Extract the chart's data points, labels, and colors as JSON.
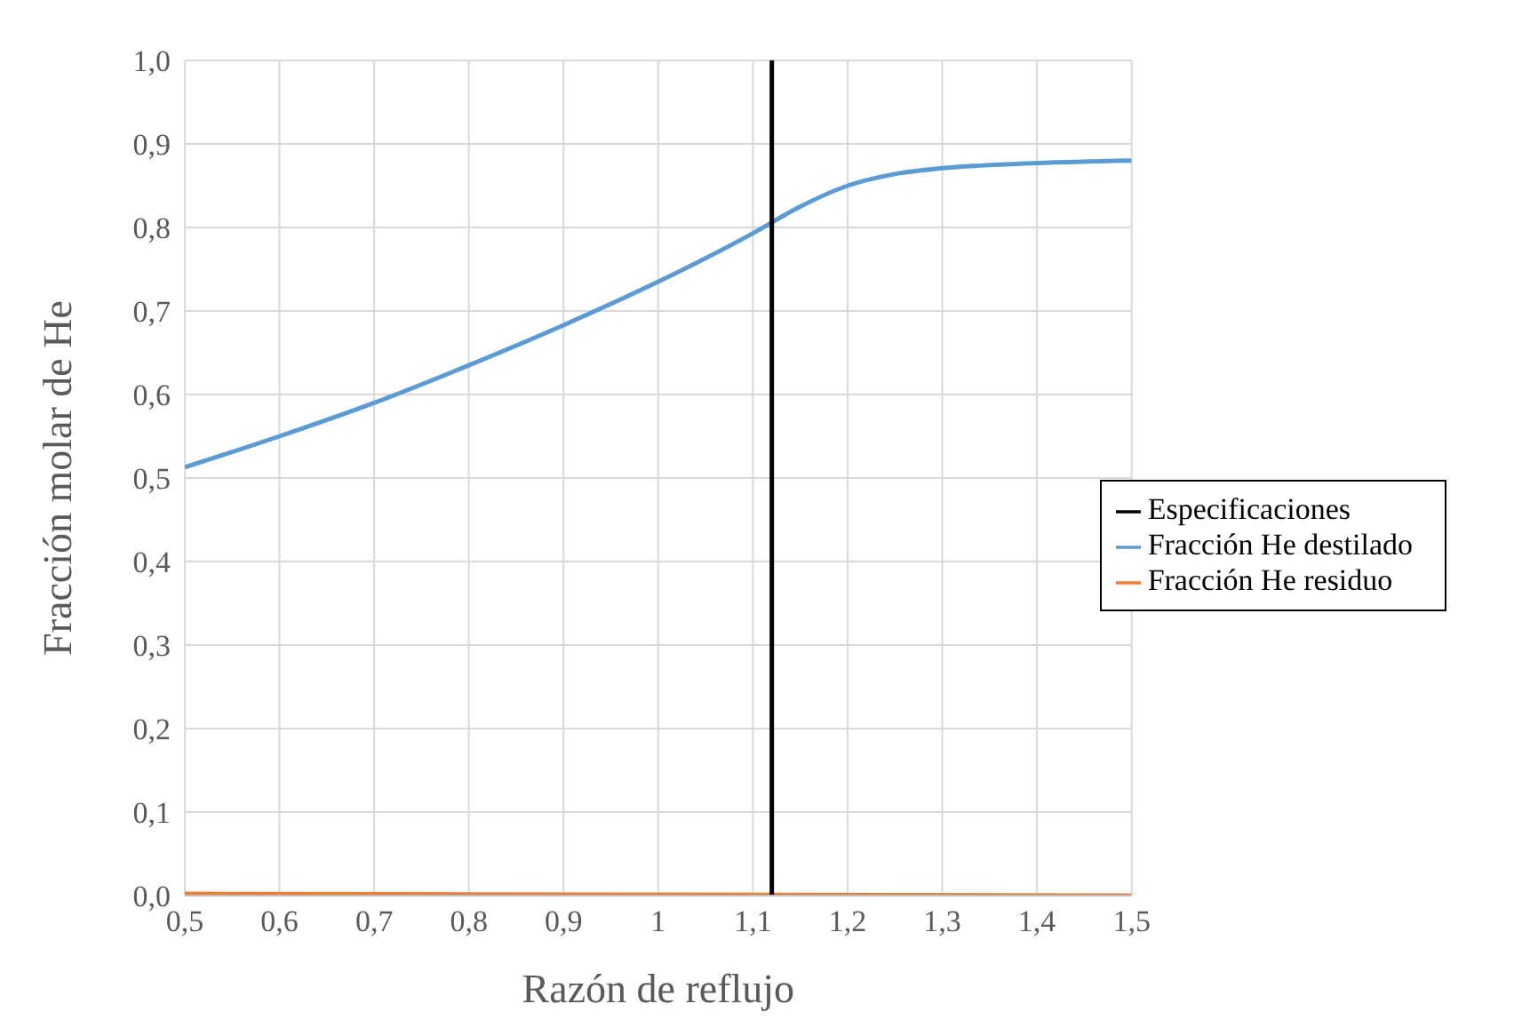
{
  "chart_data": {
    "type": "line",
    "xlabel": "Razón de reflujo",
    "ylabel": "Fracción molar de He",
    "xlim": [
      0.5,
      1.5
    ],
    "xticks": [
      {
        "value": 0.5,
        "label": "0,5"
      },
      {
        "value": 0.6,
        "label": "0,6"
      },
      {
        "value": 0.7,
        "label": "0,7"
      },
      {
        "value": 0.8,
        "label": "0,8"
      },
      {
        "value": 0.9,
        "label": "0,9"
      },
      {
        "value": 1,
        "label": "1"
      },
      {
        "value": 1.1,
        "label": "1,1"
      },
      {
        "value": 1.2,
        "label": "1,2"
      },
      {
        "value": 1.3,
        "label": "1,3"
      },
      {
        "value": 1.4,
        "label": "1,4"
      },
      {
        "value": 1.5,
        "label": "1,5"
      }
    ],
    "ylim": [
      0,
      1
    ],
    "yticks": [
      {
        "value": 0,
        "label": "0,0"
      },
      {
        "value": 0.1,
        "label": "0,1"
      },
      {
        "value": 0.2,
        "label": "0,2"
      },
      {
        "value": 0.3,
        "label": "0,3"
      },
      {
        "value": 0.4,
        "label": "0,4"
      },
      {
        "value": 0.5,
        "label": "0,5"
      },
      {
        "value": 0.6,
        "label": "0,6"
      },
      {
        "value": 0.7,
        "label": "0,7"
      },
      {
        "value": 0.8,
        "label": "0,8"
      },
      {
        "value": 0.9,
        "label": "0,9"
      },
      {
        "value": 1,
        "label": "1,0"
      }
    ],
    "grid": true,
    "legend": "right",
    "marker": "none",
    "series": [
      {
        "name": "Fracción He destilado",
        "color": "#5b9bd5",
        "x": [
          0.5,
          0.6,
          0.7,
          0.8,
          0.9,
          1.0,
          1.1,
          1.15,
          1.2,
          1.25,
          1.3,
          1.4,
          1.5
        ],
        "values": [
          0.513,
          0.55,
          0.59,
          0.635,
          0.683,
          0.735,
          0.793,
          0.825,
          0.85,
          0.864,
          0.871,
          0.877,
          0.88
        ]
      },
      {
        "name": "Fracción He residuo",
        "color": "#ed7d31",
        "x": [
          0.5,
          1.0,
          1.5
        ],
        "values": [
          0.002,
          0.001,
          0.0
        ]
      },
      {
        "name": "Especificaciones",
        "color": "#000000",
        "x": [
          1.12,
          1.12
        ],
        "values": [
          0,
          1
        ]
      }
    ]
  }
}
